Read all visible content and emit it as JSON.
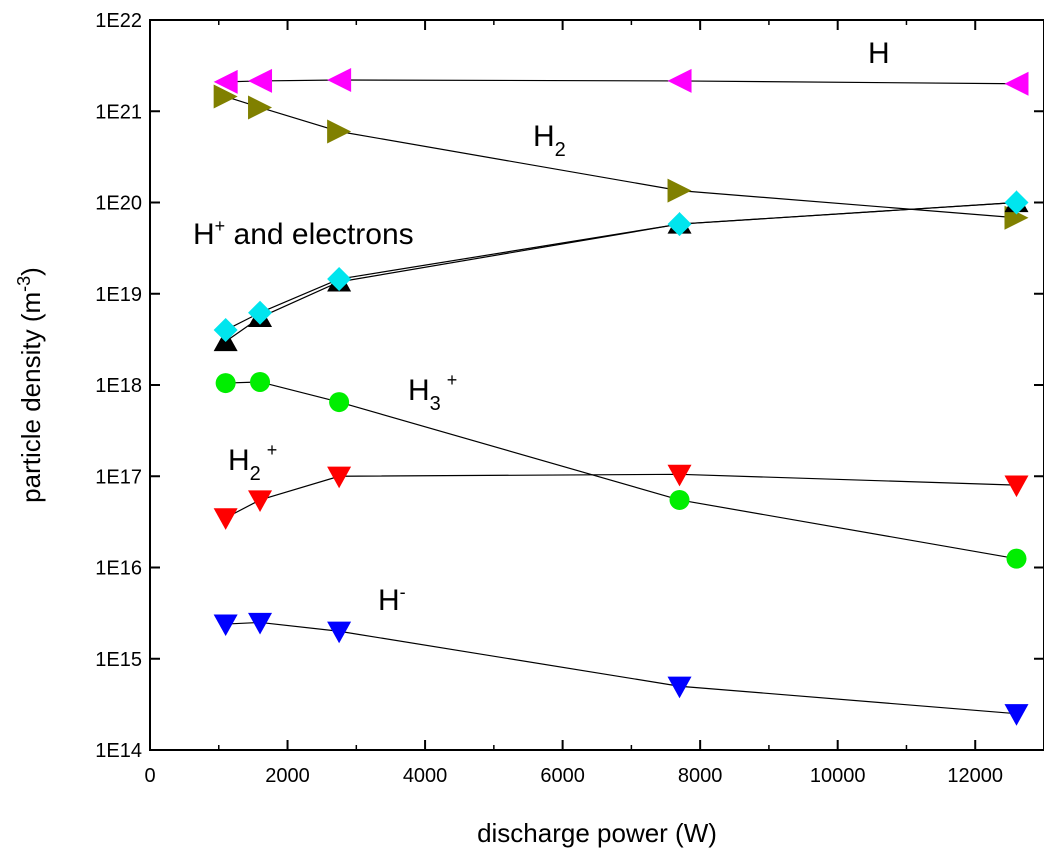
{
  "chart_data": {
    "type": "scatter",
    "xlabel": "discharge power (W)",
    "ylabel": {
      "base": "particle density (m",
      "sup": "-3",
      "tail": ")"
    },
    "xlim": [
      0,
      13000
    ],
    "ylim": [
      100000000000000.0,
      1e+22
    ],
    "yscale": "log",
    "x_ticks": [
      "0",
      "2000",
      "4000",
      "6000",
      "8000",
      "10000",
      "12000"
    ],
    "x_tick_values": [
      0,
      2000,
      4000,
      6000,
      8000,
      10000,
      12000
    ],
    "y_ticks": [
      "1E14",
      "1E15",
      "1E16",
      "1E17",
      "1E18",
      "1E19",
      "1E20",
      "1E21",
      "1E22"
    ],
    "y_tick_values": [
      100000000000000.0,
      1000000000000000.0,
      1e+16,
      1e+17,
      1e+18,
      1e+19,
      1e+20,
      1e+21,
      1e+22
    ],
    "grid": false,
    "series": [
      {
        "marker": "triangle-left",
        "color": "#ff00ff",
        "x": [
          1100,
          1600,
          2750,
          7700,
          12600
        ],
        "y": [
          2.1e+21,
          2.15e+21,
          2.2e+21,
          2.15e+21,
          2e+21
        ]
      },
      {
        "marker": "triangle-right",
        "color": "#808000",
        "x": [
          1100,
          1600,
          2750,
          7700,
          12600
        ],
        "y": [
          1.45e+21,
          1.1e+21,
          6e+20,
          1.35e+20,
          6.8e+19
        ]
      },
      {
        "marker": "triangle-up",
        "color": "#000000",
        "x": [
          1100,
          1600,
          2750,
          7700,
          12600
        ],
        "y": [
          3e+18,
          5.5e+18,
          1.35e+19,
          5.8e+19,
          1e+20
        ]
      },
      {
        "marker": "diamond",
        "color": "#00e5ee",
        "x": [
          1100,
          1600,
          2750,
          7700,
          12600
        ],
        "y": [
          4e+18,
          6.2e+18,
          1.45e+19,
          5.8e+19,
          1e+20
        ]
      },
      {
        "marker": "circle",
        "color": "#00ee00",
        "x": [
          1100,
          1600,
          2750,
          7700,
          12600
        ],
        "y": [
          1.05e+18,
          1.08e+18,
          6.5e+17,
          5.5e+16,
          1.25e+16
        ]
      },
      {
        "marker": "triangle-down",
        "color": "#ff0000",
        "x": [
          1100,
          1600,
          2750,
          7700,
          12600
        ],
        "y": [
          3.5e+16,
          5.5e+16,
          1e+17,
          1.05e+17,
          8e+16
        ]
      },
      {
        "marker": "triangle-down",
        "color": "#0000ff",
        "x": [
          1100,
          1600,
          2750,
          7700,
          12600
        ],
        "y": [
          2400000000000000.0,
          2500000000000000.0,
          2000000000000000.0,
          500000000000000.0,
          250000000000000.0
        ]
      }
    ],
    "annotations": {
      "h": {
        "base": "H"
      },
      "h2": {
        "base": "H",
        "sub": "2"
      },
      "hplus": {
        "base": "H",
        "sup": "+",
        "tail": " and electrons"
      },
      "h3plus": {
        "base": "H",
        "sub": "3",
        "sup": "+"
      },
      "h2plus": {
        "base": "H",
        "sub": "2",
        "sup": "+"
      },
      "hminus": {
        "base": "H",
        "sup": "-"
      }
    }
  }
}
